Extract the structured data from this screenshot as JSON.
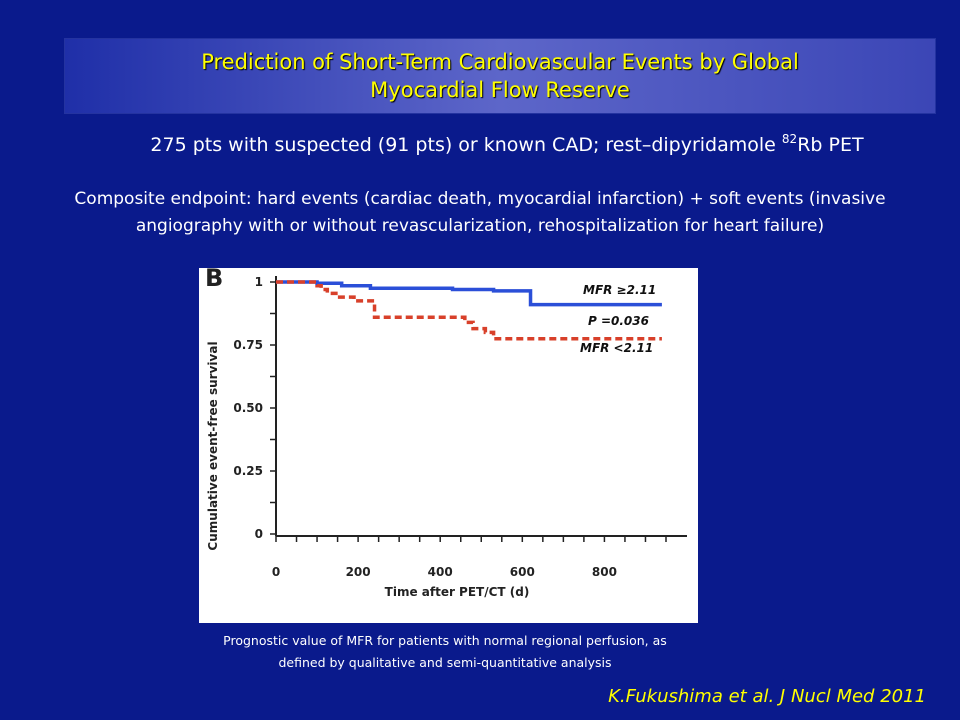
{
  "slide": {
    "title_line1": "Prediction of Short-Term Cardiovascular Events by Global",
    "title_line2": "Myocardial Flow Reserve",
    "subtitle_main": "275 pts with suspected (91 pts) or known CAD; rest–dipyridamole ",
    "subtitle_sup": "82",
    "subtitle_end": "Rb PET",
    "endpoint_line1": "Composite endpoint: hard events (cardiac death, myocardial infarction) + soft events (invasive",
    "endpoint_line2": "angiography with or without revascularization, rehospitalization for heart failure)",
    "caption_line1": "Prognostic value of MFR for patients with normal regional perfusion, as",
    "caption_line2": "defined by qualitative and semi-quantitative analysis",
    "citation": "K.Fukushima et al. J Nucl Med 2011",
    "colors": {
      "background": "#0a1a8c",
      "title_text": "#ffff00",
      "body_text": "#ffffff"
    }
  },
  "chart_data": {
    "type": "line",
    "panel_label": "B",
    "title": "",
    "xlabel": "Time after PET/CT (d)",
    "ylabel": "Cumulative event-free survival",
    "xlim": [
      0,
      950
    ],
    "ylim": [
      0,
      1
    ],
    "xticks": [
      0,
      200,
      400,
      600,
      800
    ],
    "yticks": [
      0,
      0.25,
      0.5,
      0.75,
      1
    ],
    "ytick_labels": [
      "0",
      "0.25",
      "0.50",
      "0.75",
      "1"
    ],
    "grid": false,
    "annotation": "P =0.036",
    "series": [
      {
        "name": "MFR ≥2.11",
        "style": "solid",
        "color": "#2b4fd8",
        "steps": [
          [
            0,
            1.0
          ],
          [
            100,
            0.995
          ],
          [
            160,
            0.985
          ],
          [
            230,
            0.975
          ],
          [
            430,
            0.97
          ],
          [
            530,
            0.965
          ],
          [
            620,
            0.91
          ],
          [
            940,
            0.91
          ]
        ]
      },
      {
        "name": "MFR <2.11",
        "style": "dashed",
        "color": "#d8402a",
        "steps": [
          [
            0,
            1.0
          ],
          [
            100,
            0.985
          ],
          [
            110,
            0.97
          ],
          [
            125,
            0.955
          ],
          [
            155,
            0.94
          ],
          [
            190,
            0.925
          ],
          [
            240,
            0.86
          ],
          [
            460,
            0.84
          ],
          [
            480,
            0.815
          ],
          [
            510,
            0.8
          ],
          [
            530,
            0.775
          ],
          [
            940,
            0.775
          ]
        ]
      }
    ]
  }
}
